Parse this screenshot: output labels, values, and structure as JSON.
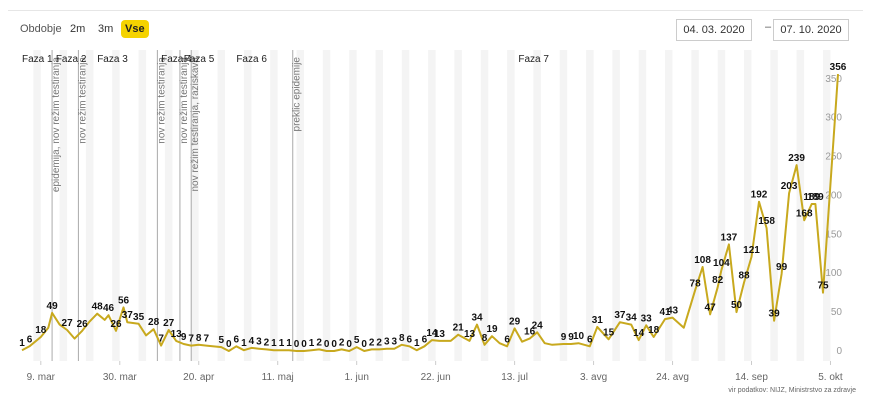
{
  "controls": {
    "period_label": "Obdobje",
    "buttons": [
      "2m",
      "3m",
      "Vse"
    ],
    "active_button": "Vse",
    "date_from": "04. 03. 2020",
    "date_separator": "–",
    "date_to": "07. 10. 2020"
  },
  "source": "vir podatkov: NIJZ, Ministrstvo za zdravje",
  "colors": {
    "line": "#c8a91e",
    "accent": "#f5d300",
    "band": "#f4f4f4",
    "event": "#aaaaaa"
  },
  "chart_data": {
    "type": "line",
    "x_start": "2020-03-04",
    "x_end": "2020-10-07",
    "ylim": [
      0,
      360
    ],
    "yticks": [
      0,
      50,
      100,
      150,
      200,
      250,
      300,
      350
    ],
    "xticks": [
      {
        "date": "2020-03-09",
        "label": "9. mar"
      },
      {
        "date": "2020-03-30",
        "label": "30. mar"
      },
      {
        "date": "2020-04-20",
        "label": "20. apr"
      },
      {
        "date": "2020-05-11",
        "label": "11. maj"
      },
      {
        "date": "2020-06-01",
        "label": "1. jun"
      },
      {
        "date": "2020-06-22",
        "label": "22. jun"
      },
      {
        "date": "2020-07-13",
        "label": "13. jul"
      },
      {
        "date": "2020-08-03",
        "label": "3. avg"
      },
      {
        "date": "2020-08-24",
        "label": "24. avg"
      },
      {
        "date": "2020-09-14",
        "label": "14. sep"
      },
      {
        "date": "2020-10-05",
        "label": "5. okt"
      }
    ],
    "phases": [
      {
        "date": "2020-03-04",
        "label": "Faza 1"
      },
      {
        "date": "2020-03-13",
        "label": "Faza 2"
      },
      {
        "date": "2020-03-24",
        "label": "Faza 3"
      },
      {
        "date": "2020-04-10",
        "label": "Faza 4"
      },
      {
        "date": "2020-04-16",
        "label": "Faza 5"
      },
      {
        "date": "2020-04-30",
        "label": "Faza 6"
      },
      {
        "date": "2020-07-14",
        "label": "Faza 7"
      }
    ],
    "events": [
      {
        "date": "2020-03-12",
        "label": "epidemija, nov režim testiranja"
      },
      {
        "date": "2020-03-19",
        "label": "nov režim testiranja"
      },
      {
        "date": "2020-04-09",
        "label": "nov režim testiranja"
      },
      {
        "date": "2020-04-15",
        "label": "nov režim testiranja"
      },
      {
        "date": "2020-04-18",
        "label": "nov režim testiranja, raziskava"
      },
      {
        "date": "2020-05-15",
        "label": "preklic epidemije"
      }
    ],
    "series": [
      {
        "values": [
          [
            "2020-03-04",
            1
          ],
          [
            "2020-03-06",
            6
          ],
          [
            "2020-03-09",
            18
          ],
          [
            "2020-03-11",
            30
          ],
          [
            "2020-03-12",
            49
          ],
          [
            "2020-03-14",
            34
          ],
          [
            "2020-03-16",
            27
          ],
          [
            "2020-03-18",
            16
          ],
          [
            "2020-03-20",
            26
          ],
          [
            "2020-03-22",
            38
          ],
          [
            "2020-03-24",
            48
          ],
          [
            "2020-03-26",
            40
          ],
          [
            "2020-03-27",
            46
          ],
          [
            "2020-03-29",
            26
          ],
          [
            "2020-03-31",
            56
          ],
          [
            "2020-04-01",
            37
          ],
          [
            "2020-04-04",
            35
          ],
          [
            "2020-04-06",
            20
          ],
          [
            "2020-04-08",
            28
          ],
          [
            "2020-04-10",
            7
          ],
          [
            "2020-04-12",
            27
          ],
          [
            "2020-04-14",
            13
          ],
          [
            "2020-04-16",
            9
          ],
          [
            "2020-04-18",
            7
          ],
          [
            "2020-04-20",
            8
          ],
          [
            "2020-04-22",
            7
          ],
          [
            "2020-04-26",
            5
          ],
          [
            "2020-04-28",
            0
          ],
          [
            "2020-04-30",
            6
          ],
          [
            "2020-05-02",
            1
          ],
          [
            "2020-05-04",
            4
          ],
          [
            "2020-05-06",
            3
          ],
          [
            "2020-05-08",
            2
          ],
          [
            "2020-05-10",
            1
          ],
          [
            "2020-05-12",
            1
          ],
          [
            "2020-05-14",
            1
          ],
          [
            "2020-05-16",
            0
          ],
          [
            "2020-05-18",
            0
          ],
          [
            "2020-05-20",
            1
          ],
          [
            "2020-05-22",
            2
          ],
          [
            "2020-05-24",
            0
          ],
          [
            "2020-05-26",
            0
          ],
          [
            "2020-05-28",
            2
          ],
          [
            "2020-05-30",
            0
          ],
          [
            "2020-06-01",
            5
          ],
          [
            "2020-06-03",
            0
          ],
          [
            "2020-06-05",
            2
          ],
          [
            "2020-06-07",
            2
          ],
          [
            "2020-06-09",
            3
          ],
          [
            "2020-06-11",
            3
          ],
          [
            "2020-06-13",
            8
          ],
          [
            "2020-06-15",
            6
          ],
          [
            "2020-06-17",
            1
          ],
          [
            "2020-06-19",
            6
          ],
          [
            "2020-06-21",
            14
          ],
          [
            "2020-06-23",
            13
          ],
          [
            "2020-06-26",
            13
          ],
          [
            "2020-06-28",
            21
          ],
          [
            "2020-07-01",
            13
          ],
          [
            "2020-07-03",
            34
          ],
          [
            "2020-07-05",
            8
          ],
          [
            "2020-07-07",
            19
          ],
          [
            "2020-07-09",
            10
          ],
          [
            "2020-07-11",
            6
          ],
          [
            "2020-07-13",
            29
          ],
          [
            "2020-07-15",
            12
          ],
          [
            "2020-07-17",
            16
          ],
          [
            "2020-07-19",
            24
          ],
          [
            "2020-07-21",
            10
          ],
          [
            "2020-07-23",
            8
          ],
          [
            "2020-07-26",
            9
          ],
          [
            "2020-07-28",
            9
          ],
          [
            "2020-07-30",
            10
          ],
          [
            "2020-08-02",
            6
          ],
          [
            "2020-08-04",
            31
          ],
          [
            "2020-08-07",
            15
          ],
          [
            "2020-08-10",
            37
          ],
          [
            "2020-08-13",
            34
          ],
          [
            "2020-08-15",
            14
          ],
          [
            "2020-08-17",
            33
          ],
          [
            "2020-08-19",
            18
          ],
          [
            "2020-08-22",
            41
          ],
          [
            "2020-08-24",
            43
          ],
          [
            "2020-08-27",
            30
          ],
          [
            "2020-08-30",
            78
          ],
          [
            "2020-09-01",
            108
          ],
          [
            "2020-09-03",
            47
          ],
          [
            "2020-09-05",
            82
          ],
          [
            "2020-09-06",
            104
          ],
          [
            "2020-09-08",
            137
          ],
          [
            "2020-09-10",
            50
          ],
          [
            "2020-09-12",
            88
          ],
          [
            "2020-09-14",
            121
          ],
          [
            "2020-09-16",
            192
          ],
          [
            "2020-09-18",
            158
          ],
          [
            "2020-09-20",
            39
          ],
          [
            "2020-09-22",
            99
          ],
          [
            "2020-09-24",
            203
          ],
          [
            "2020-09-26",
            239
          ],
          [
            "2020-09-28",
            168
          ],
          [
            "2020-09-30",
            189
          ],
          [
            "2020-10-01",
            189
          ],
          [
            "2020-10-03",
            75
          ],
          [
            "2020-10-07",
            356
          ]
        ]
      }
    ],
    "value_labels": [
      [
        "2020-03-04",
        1
      ],
      [
        "2020-03-06",
        6
      ],
      [
        "2020-03-09",
        18
      ],
      [
        "2020-03-12",
        49
      ],
      [
        "2020-03-16",
        27
      ],
      [
        "2020-03-20",
        26
      ],
      [
        "2020-03-24",
        48
      ],
      [
        "2020-03-27",
        46
      ],
      [
        "2020-03-29",
        26
      ],
      [
        "2020-03-31",
        56
      ],
      [
        "2020-04-01",
        37
      ],
      [
        "2020-04-04",
        35
      ],
      [
        "2020-04-08",
        28
      ],
      [
        "2020-04-10",
        7
      ],
      [
        "2020-04-12",
        27
      ],
      [
        "2020-04-14",
        13
      ],
      [
        "2020-04-16",
        9
      ],
      [
        "2020-04-18",
        7
      ],
      [
        "2020-04-20",
        8
      ],
      [
        "2020-04-22",
        7
      ],
      [
        "2020-04-26",
        5
      ],
      [
        "2020-04-28",
        0
      ],
      [
        "2020-04-30",
        6
      ],
      [
        "2020-05-02",
        1
      ],
      [
        "2020-05-04",
        4
      ],
      [
        "2020-05-06",
        3
      ],
      [
        "2020-05-08",
        2
      ],
      [
        "2020-05-10",
        1
      ],
      [
        "2020-05-12",
        1
      ],
      [
        "2020-05-14",
        1
      ],
      [
        "2020-05-16",
        0
      ],
      [
        "2020-05-18",
        0
      ],
      [
        "2020-05-20",
        1
      ],
      [
        "2020-05-22",
        2
      ],
      [
        "2020-05-24",
        0
      ],
      [
        "2020-05-26",
        0
      ],
      [
        "2020-05-28",
        2
      ],
      [
        "2020-05-30",
        0
      ],
      [
        "2020-06-01",
        5
      ],
      [
        "2020-06-03",
        0
      ],
      [
        "2020-06-05",
        2
      ],
      [
        "2020-06-07",
        2
      ],
      [
        "2020-06-09",
        3
      ],
      [
        "2020-06-11",
        3
      ],
      [
        "2020-06-13",
        8
      ],
      [
        "2020-06-15",
        6
      ],
      [
        "2020-06-17",
        1
      ],
      [
        "2020-06-19",
        6
      ],
      [
        "2020-06-21",
        14
      ],
      [
        "2020-06-23",
        13
      ],
      [
        "2020-06-28",
        21
      ],
      [
        "2020-07-01",
        13
      ],
      [
        "2020-07-03",
        34
      ],
      [
        "2020-07-05",
        8
      ],
      [
        "2020-07-07",
        19
      ],
      [
        "2020-07-11",
        6
      ],
      [
        "2020-07-13",
        29
      ],
      [
        "2020-07-17",
        16
      ],
      [
        "2020-07-19",
        24
      ],
      [
        "2020-07-26",
        9
      ],
      [
        "2020-07-28",
        9
      ],
      [
        "2020-07-30",
        10
      ],
      [
        "2020-08-02",
        6
      ],
      [
        "2020-08-04",
        31
      ],
      [
        "2020-08-07",
        15
      ],
      [
        "2020-08-10",
        37
      ],
      [
        "2020-08-13",
        34
      ],
      [
        "2020-08-15",
        14
      ],
      [
        "2020-08-17",
        33
      ],
      [
        "2020-08-19",
        18
      ],
      [
        "2020-08-22",
        41
      ],
      [
        "2020-08-24",
        43
      ],
      [
        "2020-08-30",
        78
      ],
      [
        "2020-09-01",
        108
      ],
      [
        "2020-09-03",
        47
      ],
      [
        "2020-09-05",
        82
      ],
      [
        "2020-09-06",
        104
      ],
      [
        "2020-09-08",
        137
      ],
      [
        "2020-09-10",
        50
      ],
      [
        "2020-09-12",
        88
      ],
      [
        "2020-09-14",
        121
      ],
      [
        "2020-09-16",
        192
      ],
      [
        "2020-09-18",
        158
      ],
      [
        "2020-09-20",
        39
      ],
      [
        "2020-09-22",
        99
      ],
      [
        "2020-09-24",
        203
      ],
      [
        "2020-09-26",
        239
      ],
      [
        "2020-09-28",
        168
      ],
      [
        "2020-09-30",
        189
      ],
      [
        "2020-10-01",
        189
      ],
      [
        "2020-10-03",
        75
      ],
      [
        "2020-10-07",
        356
      ]
    ]
  }
}
